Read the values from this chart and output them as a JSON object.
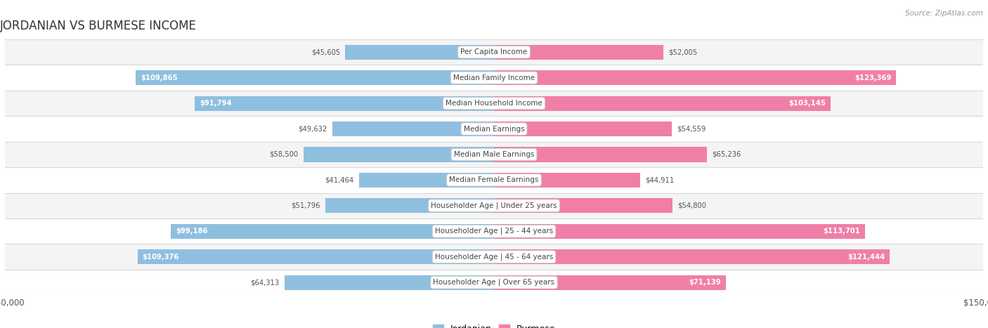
{
  "title": "JORDANIAN VS BURMESE INCOME",
  "source": "Source: ZipAtlas.com",
  "categories": [
    "Per Capita Income",
    "Median Family Income",
    "Median Household Income",
    "Median Earnings",
    "Median Male Earnings",
    "Median Female Earnings",
    "Householder Age | Under 25 years",
    "Householder Age | 25 - 44 years",
    "Householder Age | 45 - 64 years",
    "Householder Age | Over 65 years"
  ],
  "jordanian": [
    45605,
    109865,
    91794,
    49632,
    58500,
    41464,
    51796,
    99186,
    109376,
    64313
  ],
  "burmese": [
    52005,
    123369,
    103145,
    54559,
    65236,
    44911,
    54800,
    113701,
    121444,
    71139
  ],
  "jordanian_labels": [
    "$45,605",
    "$109,865",
    "$91,794",
    "$49,632",
    "$58,500",
    "$41,464",
    "$51,796",
    "$99,186",
    "$109,376",
    "$64,313"
  ],
  "burmese_labels": [
    "$52,005",
    "$123,369",
    "$103,145",
    "$54,559",
    "$65,236",
    "$44,911",
    "$54,800",
    "$113,701",
    "$121,444",
    "$71,139"
  ],
  "max_val": 150000,
  "jordanian_color": "#8fbfdf",
  "burmese_color": "#f07fa8",
  "bar_height": 0.58,
  "bg_color": "#ffffff",
  "row_colors": [
    "#f4f4f4",
    "#ffffff"
  ],
  "title_fontsize": 12,
  "label_fontsize": 7.5,
  "legend_fontsize": 9,
  "axis_label_fontsize": 8,
  "inside_threshold": 70000
}
